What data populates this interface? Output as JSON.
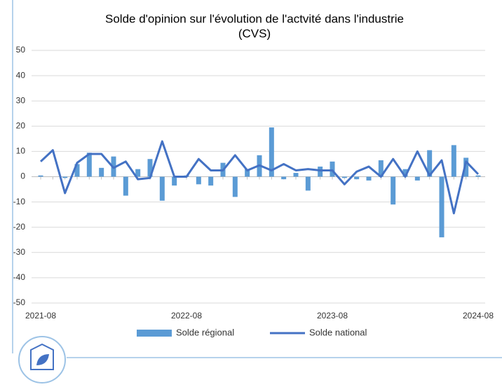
{
  "chart_data": {
    "type": "combo",
    "title": "Solde d'opinion sur l'évolution de l'actvité dans l'industrie",
    "subtitle": "(CVS)",
    "categories": [
      "2021-08",
      null,
      null,
      null,
      null,
      null,
      null,
      null,
      null,
      null,
      null,
      null,
      "2022-08",
      null,
      null,
      null,
      null,
      null,
      null,
      null,
      null,
      null,
      null,
      null,
      "2023-08",
      null,
      null,
      null,
      null,
      null,
      null,
      null,
      null,
      null,
      null,
      null,
      "2024-08"
    ],
    "series": [
      {
        "name": "Solde régional",
        "type": "bar",
        "color": "#5b9bd5",
        "values": [
          0.5,
          0,
          -0.5,
          5,
          9.5,
          3.5,
          8,
          -7.5,
          3,
          7,
          -9.5,
          -3.5,
          0.5,
          -3,
          -3.5,
          5.5,
          -8,
          3,
          8.5,
          19.5,
          -1,
          1.5,
          -5.5,
          4,
          6,
          -0.5,
          -1,
          -1.5,
          6.5,
          -11,
          3,
          -1.5,
          10.5,
          -24,
          12.5,
          7.5,
          0.5
        ]
      },
      {
        "name": "Solde national",
        "type": "line",
        "color": "#4472c4",
        "values": [
          6,
          10.5,
          -6.5,
          5.5,
          9,
          9,
          3.5,
          6,
          -1,
          -0.5,
          14,
          0,
          0,
          7,
          2.5,
          2.5,
          8.5,
          2.5,
          4.5,
          2.5,
          5,
          2.5,
          3,
          2.5,
          2.5,
          -3,
          2,
          4,
          0,
          7,
          0,
          10,
          0.5,
          6.5,
          -14.5,
          6,
          1
        ]
      }
    ],
    "ylim": [
      -50,
      50
    ],
    "yticks": [
      -50,
      -40,
      -30,
      -20,
      -10,
      0,
      10,
      20,
      30,
      40,
      50
    ],
    "grid": true
  }
}
